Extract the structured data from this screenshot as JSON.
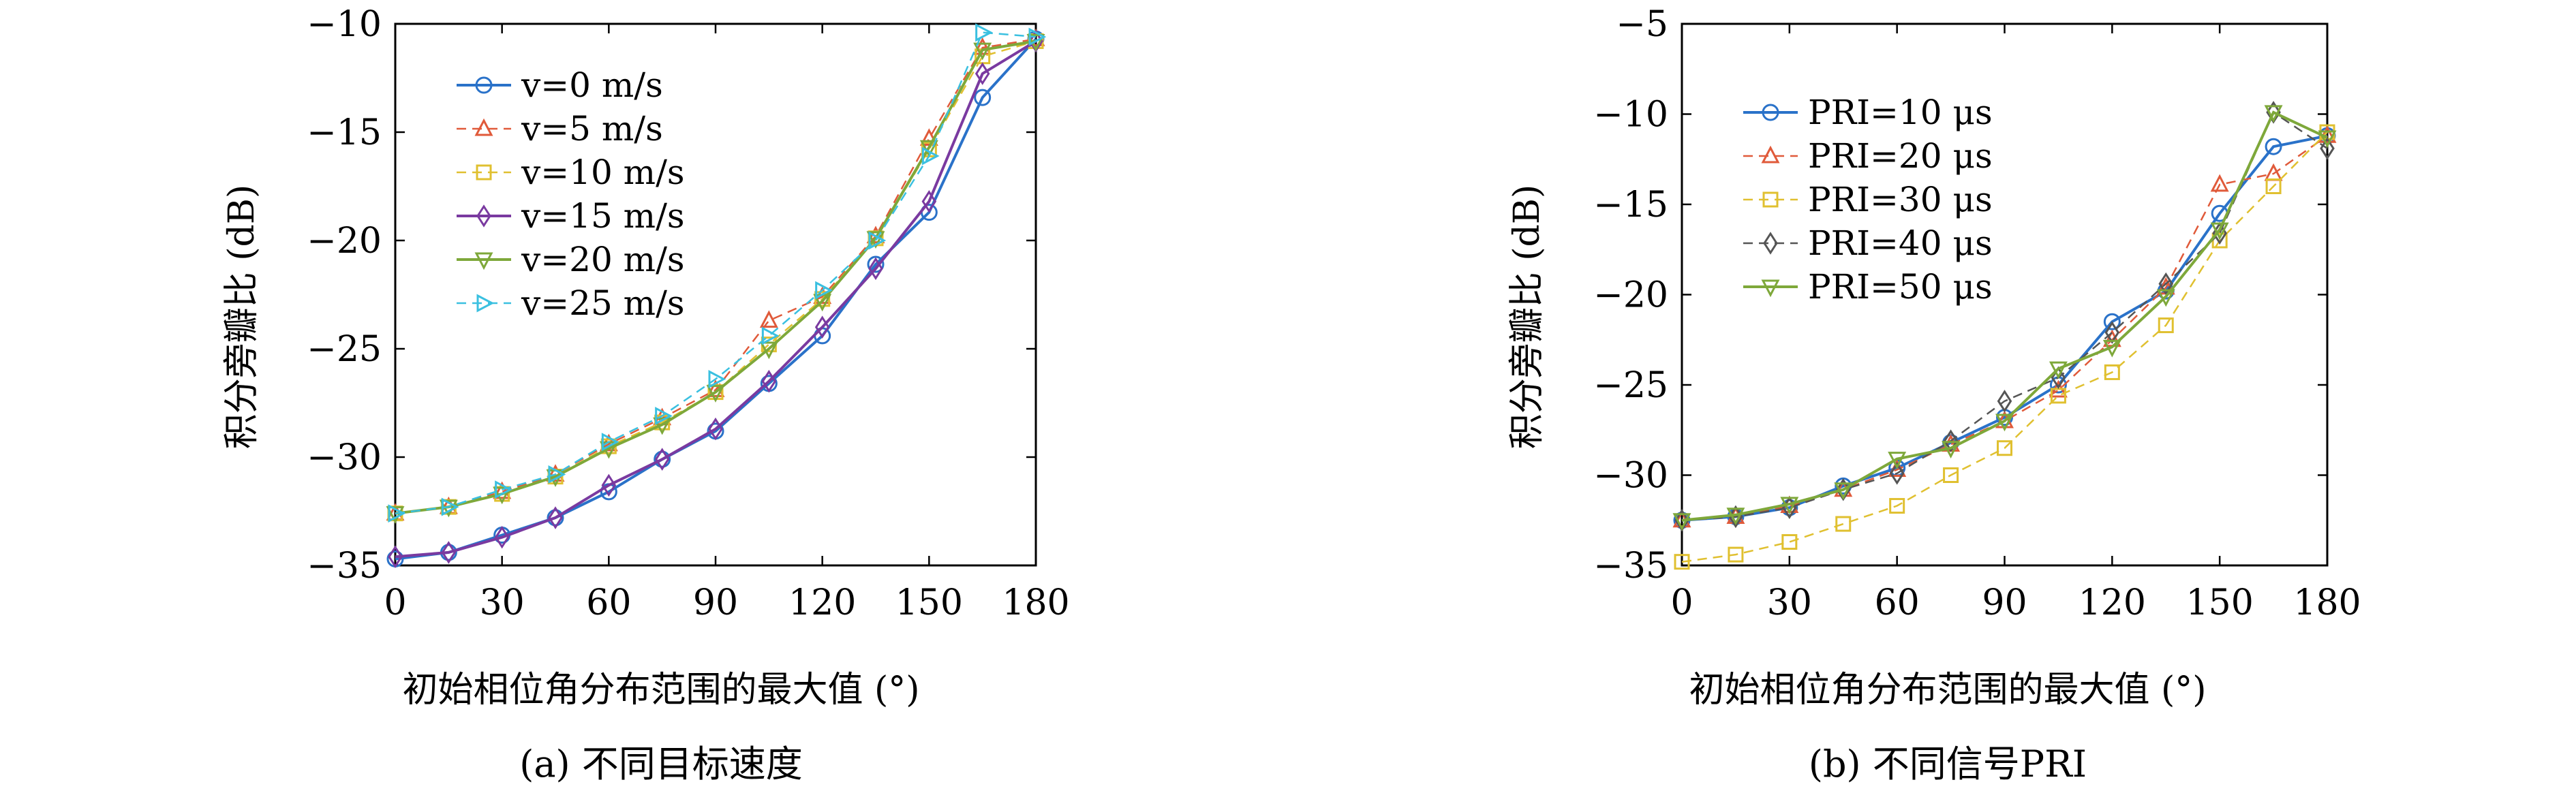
{
  "chart_data": [
    {
      "type": "line",
      "caption": "(a) 不同目标速度",
      "xlabel": "初始相位角分布范围的最大值 (°)",
      "ylabel": "积分旁瓣比 (dB)",
      "xlim": [
        0,
        180
      ],
      "ylim": [
        -35,
        -10
      ],
      "xticks": [
        0,
        30,
        60,
        90,
        120,
        150,
        180
      ],
      "yticks": [
        -35,
        -30,
        -25,
        -20,
        -15,
        -10
      ],
      "grid": false,
      "legend_position": "top-left",
      "x": [
        0,
        15,
        30,
        45,
        60,
        75,
        90,
        105,
        120,
        135,
        150,
        165,
        180
      ],
      "series": [
        {
          "name": "v=0 m/s",
          "color": "#2a72c9",
          "marker": "circle",
          "dash": "solid",
          "values": [
            -34.7,
            -34.4,
            -33.6,
            -32.8,
            -31.6,
            -30.1,
            -28.8,
            -26.6,
            -24.4,
            -21.1,
            -18.7,
            -13.4,
            -10.7
          ]
        },
        {
          "name": "v=5 m/s",
          "color": "#e05a3a",
          "marker": "triangle-up",
          "dash": "dashed",
          "values": [
            -32.6,
            -32.3,
            -31.6,
            -30.8,
            -29.4,
            -28.2,
            -26.9,
            -23.7,
            -22.6,
            -19.8,
            -15.3,
            -11.1,
            -10.7
          ]
        },
        {
          "name": "v=10 m/s",
          "color": "#e0c030",
          "marker": "square",
          "dash": "dashed",
          "values": [
            -32.6,
            -32.3,
            -31.7,
            -30.9,
            -29.5,
            -28.4,
            -27.0,
            -24.8,
            -22.7,
            -19.9,
            -15.8,
            -11.5,
            -10.8
          ]
        },
        {
          "name": "v=15 m/s",
          "color": "#7a3aa0",
          "marker": "diamond",
          "dash": "solid",
          "values": [
            -34.6,
            -34.4,
            -33.7,
            -32.8,
            -31.3,
            -30.1,
            -28.7,
            -26.5,
            -24.0,
            -21.3,
            -18.2,
            -12.3,
            -10.8
          ]
        },
        {
          "name": "v=20 m/s",
          "color": "#7ea83a",
          "marker": "triangle-down",
          "dash": "solid",
          "values": [
            -32.6,
            -32.3,
            -31.7,
            -30.9,
            -29.6,
            -28.5,
            -27.0,
            -25.0,
            -22.8,
            -19.9,
            -15.7,
            -11.2,
            -10.8
          ]
        },
        {
          "name": "v=25 m/s",
          "color": "#3ac0e0",
          "marker": "triangle-right",
          "dash": "dashed",
          "values": [
            -32.6,
            -32.3,
            -31.5,
            -30.8,
            -29.3,
            -28.1,
            -26.4,
            -24.4,
            -22.3,
            -20.0,
            -16.1,
            -10.4,
            -10.6
          ]
        }
      ]
    },
    {
      "type": "line",
      "caption": "(b) 不同信号PRI",
      "xlabel": "初始相位角分布范围的最大值 (°)",
      "ylabel": "积分旁瓣比 (dB)",
      "xlim": [
        0,
        180
      ],
      "ylim": [
        -35,
        -5
      ],
      "xticks": [
        0,
        30,
        60,
        90,
        120,
        150,
        180
      ],
      "yticks": [
        -35,
        -30,
        -25,
        -20,
        -15,
        -10,
        -5
      ],
      "grid": false,
      "legend_position": "top-left",
      "x": [
        0,
        15,
        30,
        45,
        60,
        75,
        90,
        105,
        120,
        135,
        150,
        165,
        180
      ],
      "series": [
        {
          "name": "PRI=10 μs",
          "color": "#2a72c9",
          "marker": "circle",
          "dash": "solid",
          "values": [
            -32.5,
            -32.3,
            -31.8,
            -30.6,
            -29.6,
            -28.2,
            -26.8,
            -25.0,
            -21.5,
            -19.8,
            -15.5,
            -11.8,
            -11.2
          ]
        },
        {
          "name": "PRI=20 μs",
          "color": "#e05a3a",
          "marker": "triangle-up",
          "dash": "dashed",
          "values": [
            -32.5,
            -32.3,
            -31.7,
            -30.8,
            -29.7,
            -28.3,
            -27.0,
            -25.3,
            -22.5,
            -19.6,
            -13.9,
            -13.3,
            -11.2
          ]
        },
        {
          "name": "PRI=30 μs",
          "color": "#e0c030",
          "marker": "square",
          "dash": "dashed",
          "values": [
            -34.8,
            -34.4,
            -33.7,
            -32.7,
            -31.7,
            -30.0,
            -28.5,
            -25.6,
            -24.3,
            -21.7,
            -17.0,
            -14.0,
            -11.0
          ]
        },
        {
          "name": "PRI=40 μs",
          "color": "#555555",
          "marker": "diamond",
          "dash": "dashed",
          "values": [
            -32.5,
            -32.3,
            -31.8,
            -30.8,
            -29.9,
            -28.1,
            -25.9,
            -24.6,
            -22.1,
            -19.4,
            -16.6,
            -9.9,
            -11.9
          ]
        },
        {
          "name": "PRI=50 μs",
          "color": "#7ea83a",
          "marker": "triangle-down",
          "dash": "solid",
          "values": [
            -32.5,
            -32.2,
            -31.6,
            -30.8,
            -29.1,
            -28.5,
            -27.0,
            -24.1,
            -22.9,
            -20.1,
            -16.4,
            -9.9,
            -11.3
          ]
        }
      ]
    }
  ]
}
